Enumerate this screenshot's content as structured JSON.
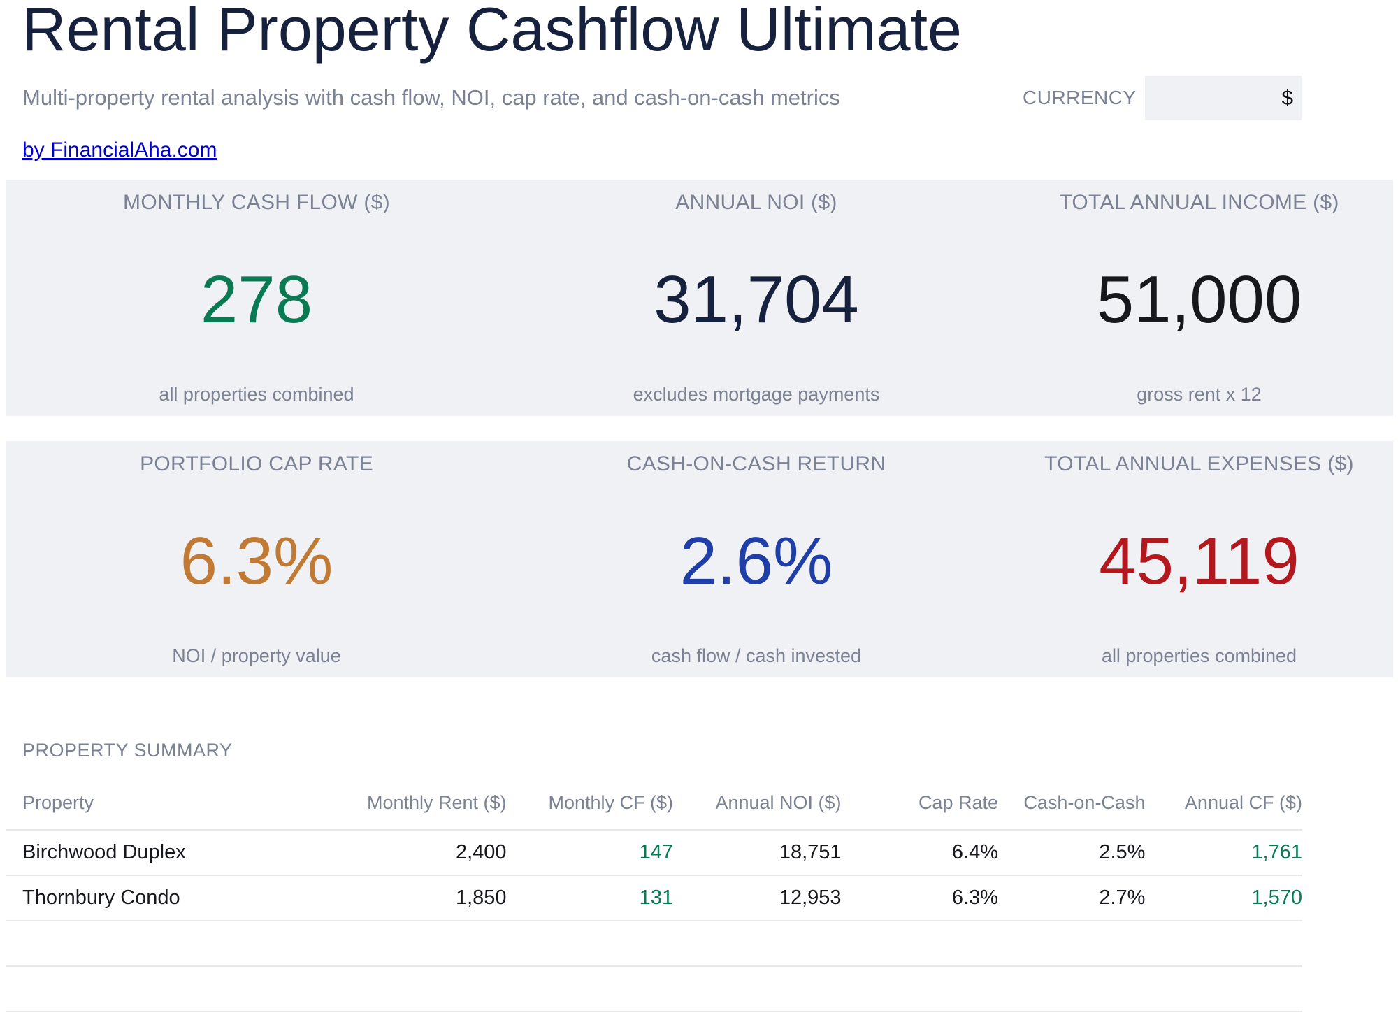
{
  "header": {
    "title": "Rental Property Cashflow Ultimate",
    "subtitle": "Multi-property rental analysis with cash flow, NOI, cap rate, and cash-on-cash metrics",
    "byline": "by FinancialAha.com",
    "currency_label": "CURRENCY",
    "currency_value": "$"
  },
  "kpis_row1": [
    {
      "label": "MONTHLY CASH FLOW ($)",
      "value": "278",
      "note": "all properties combined",
      "color": "#0a7a52"
    },
    {
      "label": "ANNUAL NOI ($)",
      "value": "31,704",
      "note": "excludes mortgage payments",
      "color": "#16213e"
    },
    {
      "label": "TOTAL ANNUAL INCOME ($)",
      "value": "51,000",
      "note": "gross rent x 12",
      "color": "#16181d"
    }
  ],
  "kpis_row2": [
    {
      "label": "PORTFOLIO CAP RATE",
      "value": "6.3%",
      "note": "NOI / property value",
      "color": "#c07a34"
    },
    {
      "label": "CASH-ON-CASH RETURN",
      "value": "2.6%",
      "note": "cash flow / cash invested",
      "color": "#1f3ea8"
    },
    {
      "label": "TOTAL ANNUAL EXPENSES ($)",
      "value": "45,119",
      "note": "all properties combined",
      "color": "#b3181f"
    }
  ],
  "summary": {
    "title": "PROPERTY SUMMARY",
    "columns": [
      "Property",
      "Monthly Rent ($)",
      "Monthly CF ($)",
      "Annual NOI ($)",
      "Cap Rate",
      "Cash-on-Cash",
      "Annual CF ($)"
    ],
    "rows": [
      [
        "Birchwood Duplex",
        "2,400",
        "147",
        "18,751",
        "6.4%",
        "2.5%",
        "1,761"
      ],
      [
        "Thornbury Condo",
        "1,850",
        "131",
        "12,953",
        "6.3%",
        "2.7%",
        "1,570"
      ],
      [
        "",
        "",
        "",
        "",
        "",
        "",
        ""
      ],
      [
        "",
        "",
        "",
        "",
        "",
        "",
        ""
      ]
    ],
    "positive_color": "#0a7a52"
  }
}
